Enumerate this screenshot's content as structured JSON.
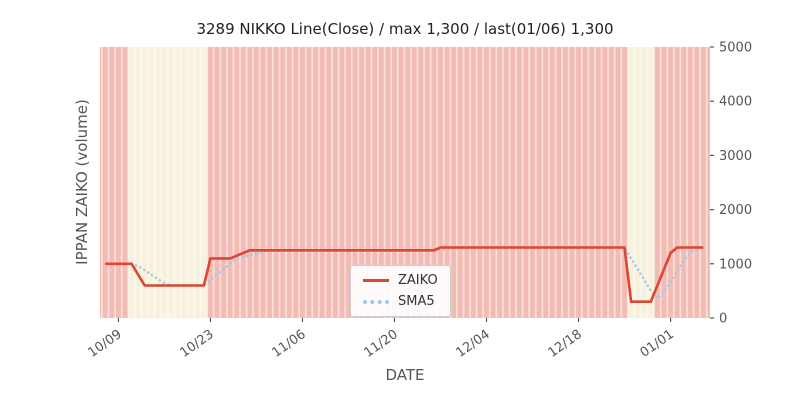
{
  "chart_data": {
    "type": "line",
    "title": "3289 NIKKO Line(Close) / max 1,300 / last(01/06) 1,300",
    "xlabel": "DATE",
    "ylabel": "IPPAN ZAIKO (volume)",
    "ylim": [
      0,
      5000
    ],
    "grid": false,
    "legend_position": "lower-center",
    "yticks": [
      {
        "value": 0,
        "label": "0"
      },
      {
        "value": 1000,
        "label": "1000"
      },
      {
        "value": 2000,
        "label": "2000"
      },
      {
        "value": 3000,
        "label": "3000"
      },
      {
        "value": 4000,
        "label": "4000"
      },
      {
        "value": 5000,
        "label": "5000"
      }
    ],
    "xticks": [
      {
        "day": 2,
        "label": "10/09"
      },
      {
        "day": 16,
        "label": "10/23"
      },
      {
        "day": 30,
        "label": "11/06"
      },
      {
        "day": 44,
        "label": "11/20"
      },
      {
        "day": 58,
        "label": "12/04"
      },
      {
        "day": 72,
        "label": "12/18"
      },
      {
        "day": 86,
        "label": "01/01"
      }
    ],
    "dates": [
      "10/07",
      "10/08",
      "10/09",
      "10/10",
      "10/11",
      "10/12",
      "10/13",
      "10/14",
      "10/15",
      "10/16",
      "10/17",
      "10/18",
      "10/19",
      "10/20",
      "10/21",
      "10/22",
      "10/23",
      "10/24",
      "10/25",
      "10/26",
      "10/27",
      "10/28",
      "10/29",
      "10/30",
      "10/31",
      "11/01",
      "11/02",
      "11/03",
      "11/04",
      "11/05",
      "11/06",
      "11/07",
      "11/08",
      "11/09",
      "11/10",
      "11/11",
      "11/12",
      "11/13",
      "11/14",
      "11/15",
      "11/16",
      "11/17",
      "11/18",
      "11/19",
      "11/20",
      "11/21",
      "11/22",
      "11/23",
      "11/24",
      "11/25",
      "11/26",
      "11/27",
      "11/28",
      "11/29",
      "11/30",
      "12/01",
      "12/02",
      "12/03",
      "12/04",
      "12/05",
      "12/06",
      "12/07",
      "12/08",
      "12/09",
      "12/10",
      "12/11",
      "12/12",
      "12/13",
      "12/14",
      "12/15",
      "12/16",
      "12/17",
      "12/18",
      "12/19",
      "12/20",
      "12/21",
      "12/22",
      "12/23",
      "12/24",
      "12/25",
      "12/26",
      "12/27",
      "12/28",
      "12/29",
      "12/30",
      "12/31",
      "01/01",
      "01/02",
      "01/03",
      "01/04",
      "01/05",
      "01/06"
    ],
    "series": [
      {
        "name": "ZAIKO",
        "color": "#dc4632",
        "style": "solid",
        "values": [
          1000,
          1000,
          1000,
          1000,
          1000,
          800,
          600,
          600,
          600,
          600,
          600,
          600,
          600,
          600,
          600,
          600,
          1100,
          1100,
          1100,
          1100,
          1150,
          1200,
          1250,
          1250,
          1250,
          1250,
          1250,
          1250,
          1250,
          1250,
          1250,
          1250,
          1250,
          1250,
          1250,
          1250,
          1250,
          1250,
          1250,
          1250,
          1250,
          1250,
          1250,
          1250,
          1250,
          1250,
          1250,
          1250,
          1250,
          1250,
          1250,
          1300,
          1300,
          1300,
          1300,
          1300,
          1300,
          1300,
          1300,
          1300,
          1300,
          1300,
          1300,
          1300,
          1300,
          1300,
          1300,
          1300,
          1300,
          1300,
          1300,
          1300,
          1300,
          1300,
          1300,
          1300,
          1300,
          1300,
          1300,
          1300,
          300,
          300,
          300,
          300,
          600,
          900,
          1200,
          1300,
          1300,
          1300,
          1300,
          1300
        ]
      },
      {
        "name": "SMA5",
        "color": "#9fc7e8",
        "style": "dotted",
        "derived_from": "ZAIKO",
        "window": 5
      }
    ],
    "background": {
      "base_color": "#f2bcb4",
      "highlight_color": "#f7f1de",
      "day_separator_color": "rgba(255,255,255,0.5)",
      "highlight_ranges": [
        {
          "start_day": 4,
          "end_day": 15
        },
        {
          "start_day": 80,
          "end_day": 83
        }
      ]
    },
    "max_value": 1300,
    "last_date": "01/06",
    "last_value": 1300
  }
}
